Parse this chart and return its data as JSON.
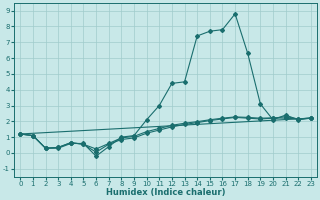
{
  "xlabel": "Humidex (Indice chaleur)",
  "xlim": [
    -0.5,
    23.5
  ],
  "ylim": [
    -1.5,
    9.5
  ],
  "xticks": [
    0,
    1,
    2,
    3,
    4,
    5,
    6,
    7,
    8,
    9,
    10,
    11,
    12,
    13,
    14,
    15,
    16,
    17,
    18,
    19,
    20,
    21,
    22,
    23
  ],
  "yticks": [
    -1,
    0,
    1,
    2,
    3,
    4,
    5,
    6,
    7,
    8,
    9
  ],
  "bg_color": "#c8e8e8",
  "grid_color": "#a0cccc",
  "line_color": "#1a6e6e",
  "main_x": [
    0,
    1,
    2,
    3,
    4,
    5,
    6,
    7,
    8,
    9,
    10,
    11,
    12,
    13,
    14,
    15,
    16,
    17,
    18,
    19,
    20,
    21,
    22,
    23
  ],
  "main_y": [
    1.2,
    1.1,
    0.3,
    0.3,
    0.6,
    0.6,
    -0.2,
    0.4,
    1.0,
    1.1,
    2.1,
    3.0,
    4.4,
    4.5,
    7.4,
    7.7,
    7.8,
    8.8,
    6.3,
    3.1,
    2.1,
    2.4,
    2.1,
    2.2
  ],
  "line2_x": [
    0,
    1,
    2,
    3,
    4,
    5,
    6,
    7,
    8,
    9,
    10,
    11,
    12,
    13,
    14,
    15,
    16,
    17,
    18,
    19,
    20,
    21,
    22,
    23
  ],
  "line2_y": [
    1.2,
    1.1,
    0.3,
    0.35,
    0.65,
    0.55,
    0.05,
    0.55,
    0.85,
    0.95,
    1.25,
    1.45,
    1.65,
    1.8,
    1.92,
    2.05,
    2.15,
    2.25,
    2.2,
    2.15,
    2.2,
    2.3,
    2.15,
    2.2
  ],
  "line3_x": [
    0,
    1,
    2,
    3,
    4,
    5,
    6,
    7,
    8,
    9,
    10,
    11,
    12,
    13,
    14,
    15,
    16,
    17,
    18,
    19,
    20,
    21,
    22,
    23
  ],
  "line3_y": [
    1.2,
    1.1,
    0.3,
    0.35,
    0.65,
    0.55,
    0.25,
    0.6,
    0.95,
    1.05,
    1.35,
    1.55,
    1.75,
    1.88,
    1.98,
    2.1,
    2.2,
    2.28,
    2.25,
    2.2,
    2.22,
    2.2,
    2.15,
    2.22
  ],
  "line4_x": [
    0,
    23
  ],
  "line4_y": [
    1.2,
    2.2
  ],
  "lw": 0.8,
  "ms": 2.0
}
